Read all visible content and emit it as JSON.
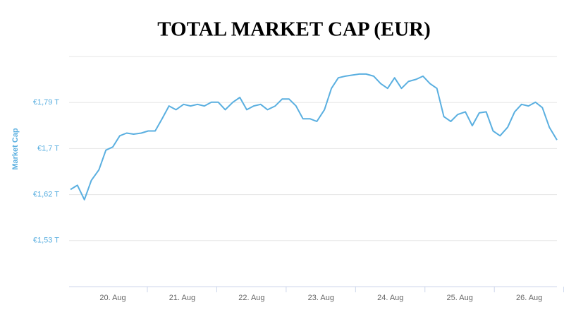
{
  "chart_data": {
    "type": "line",
    "title": "TOTAL MARKET CAP (EUR)",
    "y_label": "Market Cap",
    "x": [
      19.39,
      19.49,
      19.59,
      19.69,
      19.8,
      19.9,
      20.0,
      20.1,
      20.2,
      20.3,
      20.41,
      20.51,
      20.61,
      20.71,
      20.81,
      20.91,
      21.02,
      21.12,
      21.22,
      21.32,
      21.42,
      21.52,
      21.62,
      21.73,
      21.83,
      21.93,
      22.03,
      22.13,
      22.23,
      22.34,
      22.44,
      22.54,
      22.64,
      22.74,
      22.84,
      22.94,
      23.05,
      23.15,
      23.25,
      23.35,
      23.45,
      23.55,
      23.65,
      23.76,
      23.86,
      23.96,
      24.06,
      24.16,
      24.26,
      24.37,
      24.47,
      24.57,
      24.67,
      24.77,
      24.87,
      24.97,
      25.08,
      25.18,
      25.28,
      25.38,
      25.48,
      25.58,
      25.69,
      25.79,
      25.89,
      25.99,
      26.09,
      26.19,
      26.29,
      26.4
    ],
    "series": [
      {
        "name": "Market Cap",
        "color": "#5aafe0",
        "values": [
          1.627,
          1.635,
          1.608,
          1.644,
          1.664,
          1.701,
          1.707,
          1.728,
          1.733,
          1.731,
          1.733,
          1.737,
          1.737,
          1.76,
          1.784,
          1.777,
          1.787,
          1.784,
          1.787,
          1.784,
          1.791,
          1.791,
          1.777,
          1.791,
          1.8,
          1.777,
          1.784,
          1.787,
          1.777,
          1.784,
          1.797,
          1.797,
          1.784,
          1.76,
          1.76,
          1.755,
          1.777,
          1.817,
          1.837,
          1.84,
          1.842,
          1.844,
          1.844,
          1.84,
          1.826,
          1.817,
          1.837,
          1.817,
          1.83,
          1.834,
          1.84,
          1.826,
          1.817,
          1.764,
          1.755,
          1.768,
          1.773,
          1.747,
          1.771,
          1.773,
          1.737,
          1.728,
          1.744,
          1.773,
          1.787,
          1.784,
          1.791,
          1.781,
          1.744,
          1.72
        ]
      }
    ],
    "xlim": [
      19.37,
      26.4
    ],
    "xticks": [
      {
        "value": 20,
        "label": "20. Aug"
      },
      {
        "value": 21,
        "label": "21. Aug"
      },
      {
        "value": 22,
        "label": "22. Aug"
      },
      {
        "value": 23,
        "label": "23. Aug"
      },
      {
        "value": 24,
        "label": "24. Aug"
      },
      {
        "value": 25,
        "label": "25. Aug"
      },
      {
        "value": 26,
        "label": "26. Aug"
      }
    ],
    "ylim": [
      1.4445,
      1.877
    ],
    "yticks": [
      {
        "value": 1.531,
        "label": "€1,53 T"
      },
      {
        "value": 1.6175,
        "label": "€1,62 T"
      },
      {
        "value": 1.704,
        "label": "€1,7 T"
      },
      {
        "value": 1.7905,
        "label": "€1,79 T"
      }
    ],
    "grid": true
  }
}
